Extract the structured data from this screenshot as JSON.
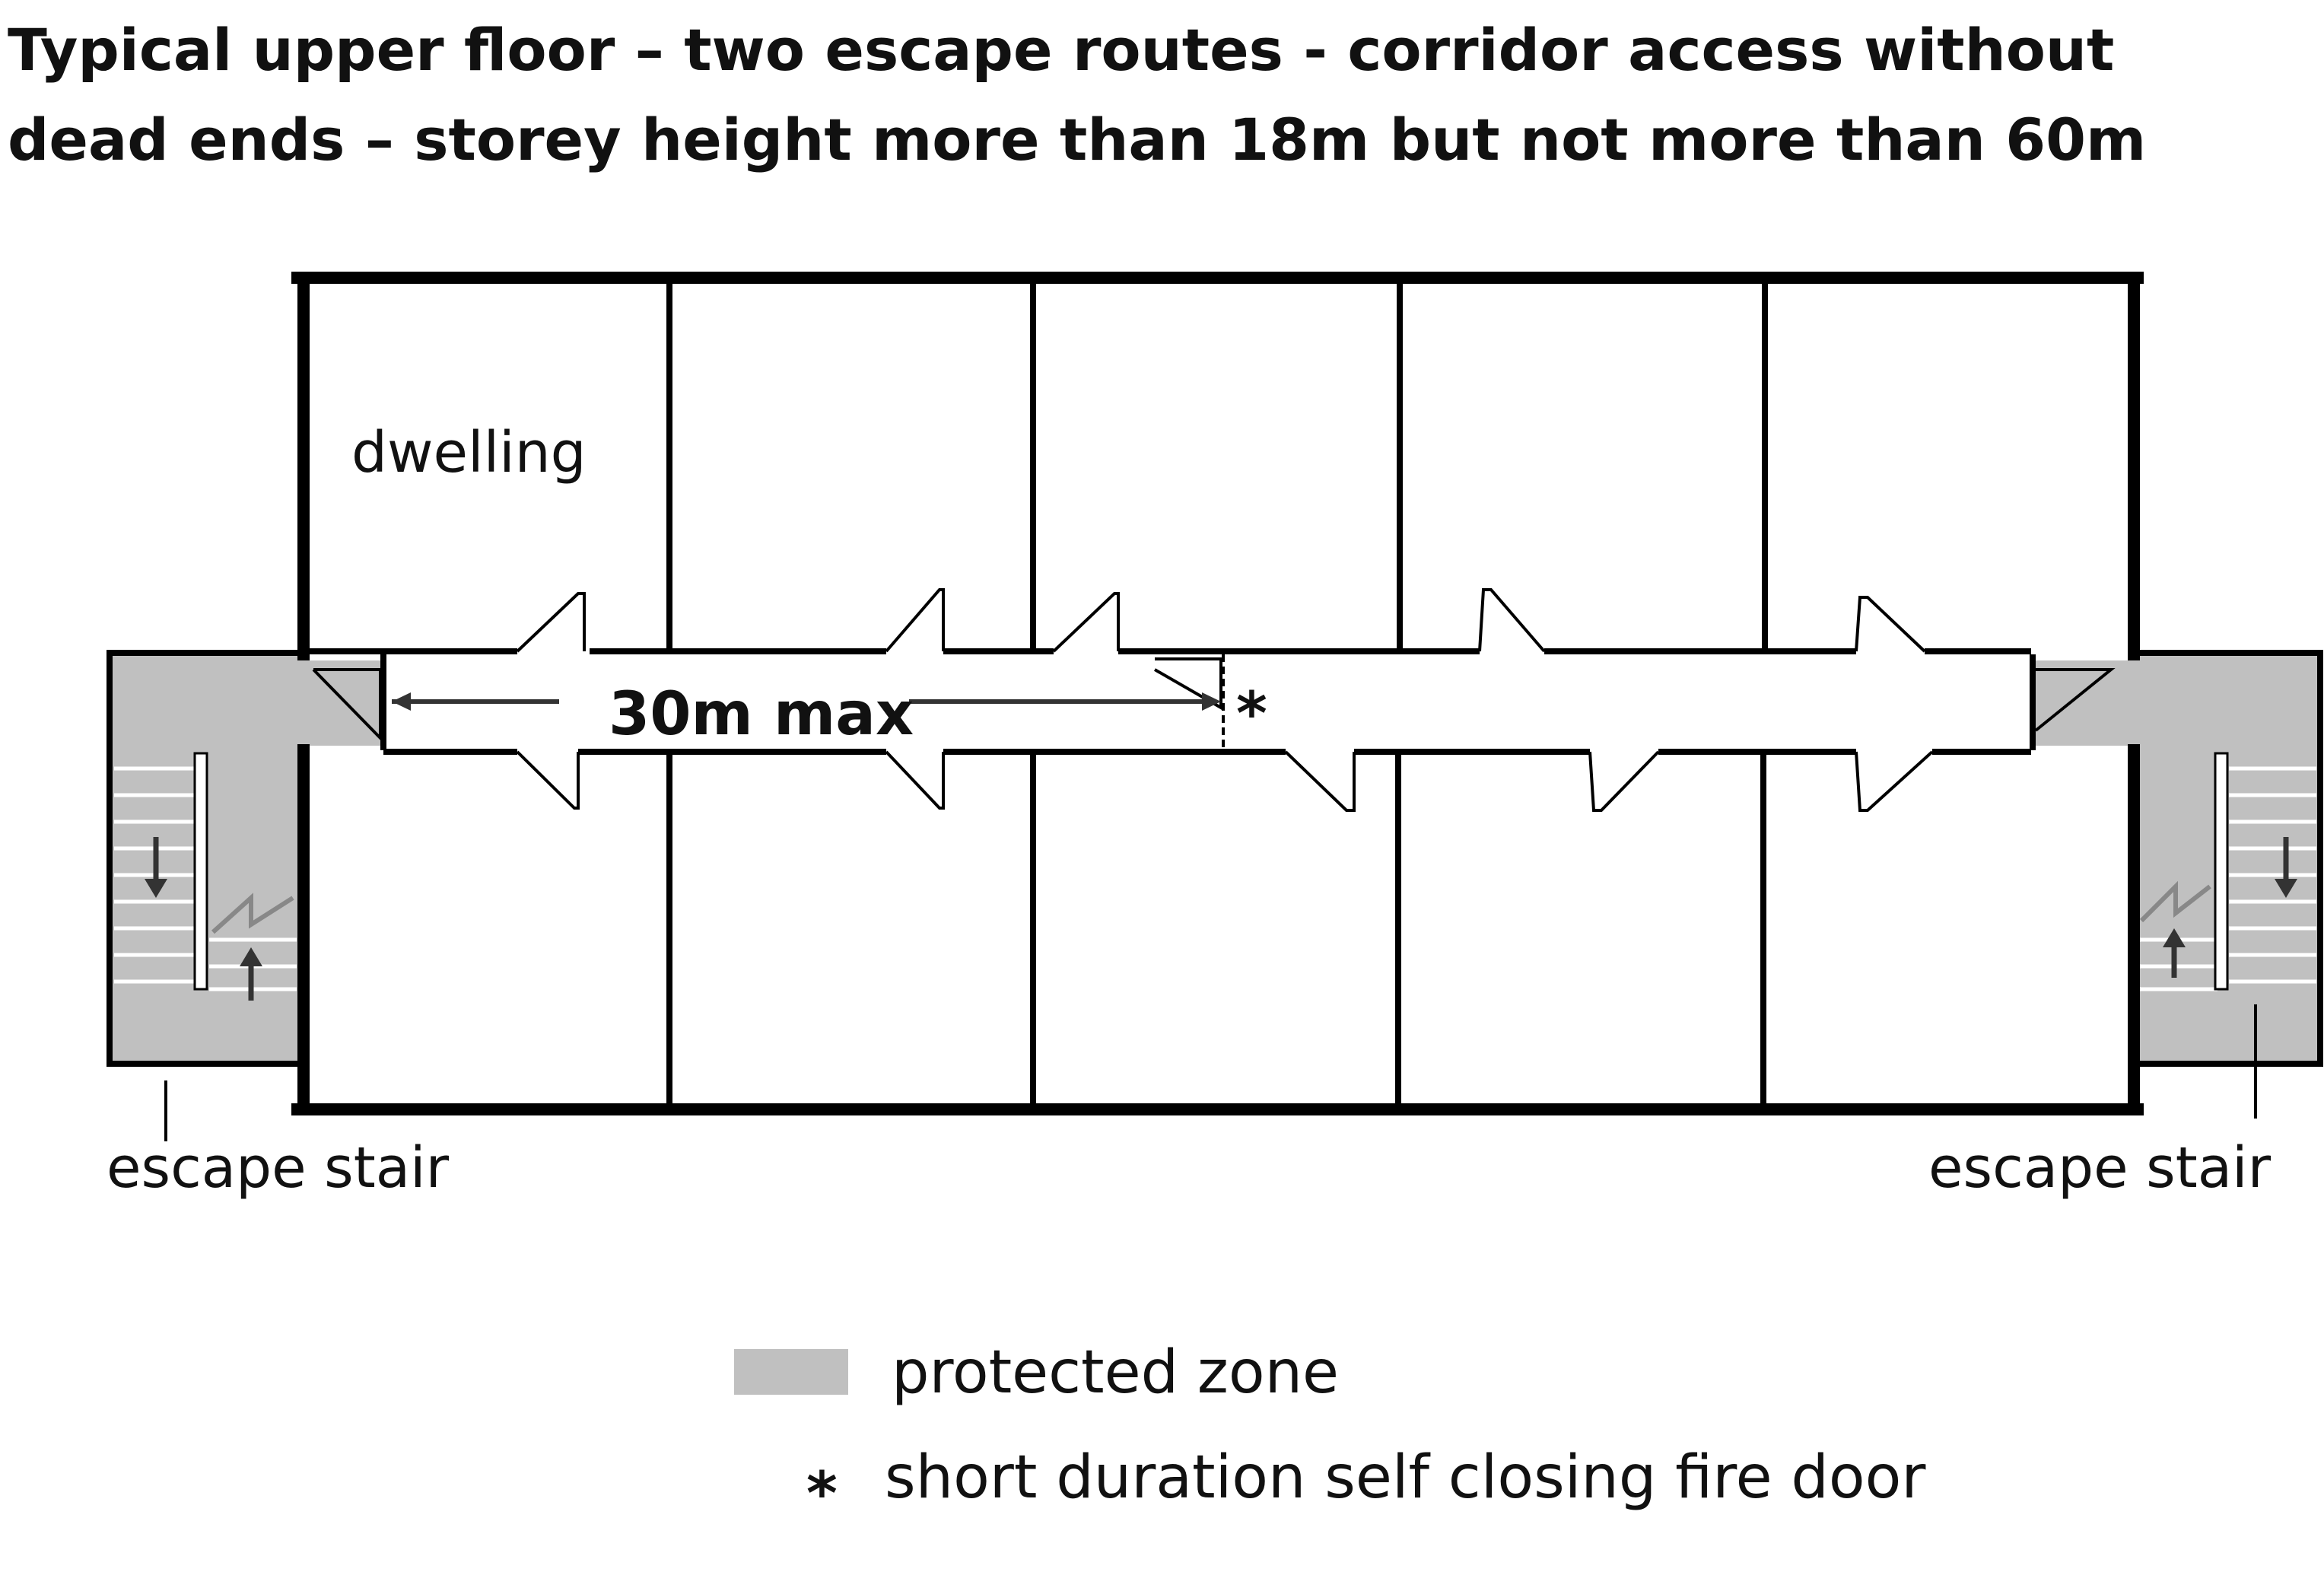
{
  "title": {
    "line1": "Typical upper floor – two escape routes - corridor access without",
    "line2": "dead ends – storey height more than 18m but not more than 60m"
  },
  "labels": {
    "dwelling": "dwelling",
    "travel_distance": "30m max",
    "escape_stair_left": "escape stair",
    "escape_stair_right": "escape stair",
    "fire_door_marker": "*"
  },
  "legend": {
    "protected_zone": "protected zone",
    "fire_door_symbol": "*",
    "fire_door": "short duration self closing fire  door"
  },
  "colors": {
    "protected_zone": "#c0c0c0",
    "wall": "#000000",
    "background": "#ffffff"
  }
}
